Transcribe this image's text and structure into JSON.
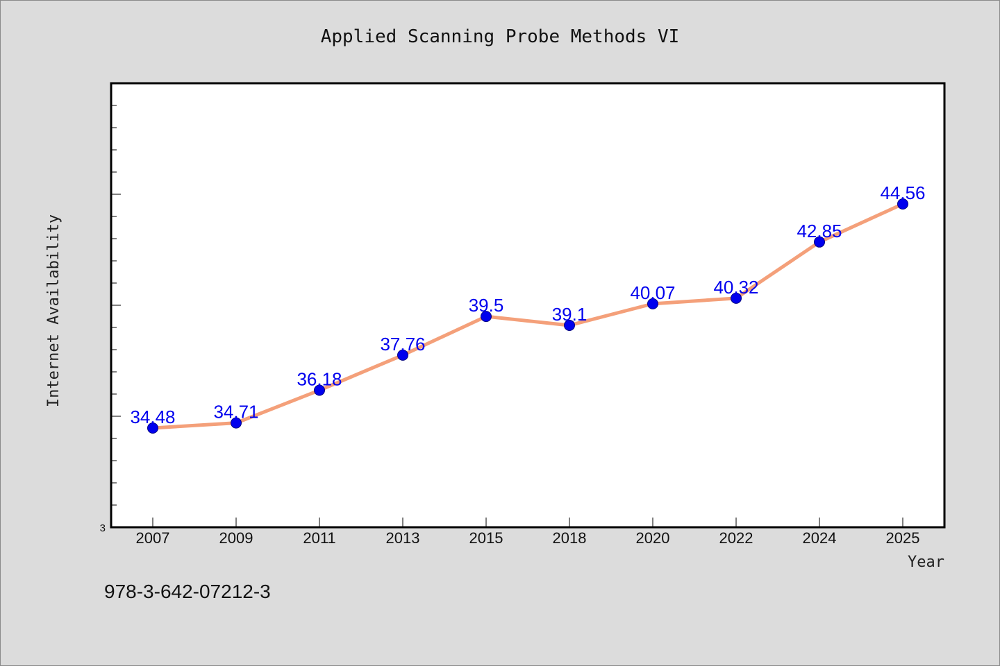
{
  "chart_data": {
    "type": "line",
    "title": "Applied Scanning Probe Methods VI",
    "xlabel": "Year",
    "ylabel": "Internet Availability",
    "categories": [
      "2007",
      "2009",
      "2011",
      "2013",
      "2015",
      "2018",
      "2020",
      "2022",
      "2024",
      "2025"
    ],
    "series": [
      {
        "values": [
          34.48,
          34.71,
          36.18,
          37.76,
          39.5,
          39.1,
          40.07,
          40.32,
          42.85,
          44.56
        ],
        "data_labels": [
          "34.48",
          "34.71",
          "36.18",
          "37.76",
          "39.5",
          "39.1",
          "40.07",
          "40.32",
          "42.85",
          "44.56"
        ]
      }
    ],
    "ylim": [
      3,
      45
    ],
    "yticks_shown": [
      "3"
    ],
    "grid": false,
    "legend": "none",
    "colors": {
      "line": "#f4a07a",
      "marker": "#0000ee",
      "data_label": "#0000ee",
      "plot_background": "#ffffff",
      "page_background": "#dcdcdc"
    }
  },
  "footer": {
    "isbn": "978-3-642-07212-3"
  }
}
